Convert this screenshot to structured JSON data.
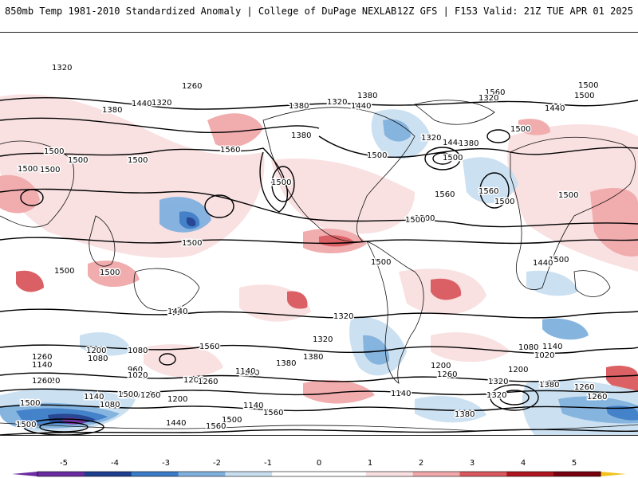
{
  "header": {
    "title": "850mb Temp 1981-2010 Standardized Anomaly | College of DuPage NEXLAB",
    "run_info": "12Z GFS | F153 Valid: 21Z TUE APR 01 2025"
  },
  "map": {
    "contour_labels": [
      "1320",
      "1260",
      "1380",
      "1440",
      "1560",
      "1500",
      "1320",
      "1380",
      "1320",
      "1380",
      "1440",
      "1380",
      "1320",
      "1560",
      "1500",
      "1500",
      "1500",
      "1500",
      "1500",
      "1500",
      "1560",
      "1500",
      "1500",
      "1500",
      "1500",
      "1500",
      "1500",
      "1500",
      "1440",
      "1440",
      "1560",
      "1500",
      "1500",
      "1380",
      "1320",
      "1260",
      "1200",
      "1080",
      "1320",
      "1380",
      "1260",
      "1140",
      "1080",
      "960",
      "1020",
      "1200",
      "1140",
      "1260",
      "1020",
      "1260",
      "1140",
      "1080",
      "1200",
      "1260",
      "1080",
      "1140",
      "1200",
      "1260",
      "1140",
      "1020",
      "1080",
      "1140",
      "1320",
      "1200",
      "1320",
      "1380",
      "1260",
      "1380",
      "1440",
      "1500",
      "1560",
      "1560",
      "1500",
      "1500",
      "1500",
      "1500",
      "1500",
      "1440",
      "1560",
      "1320",
      "1440",
      "1380",
      "1500",
      "1500",
      "1260",
      "1320"
    ],
    "anomaly_colors": {
      "cold5": "#6a2ca0",
      "cold4": "#1e3f8f",
      "cold3": "#3b7cc8",
      "cold2": "#7fb0de",
      "cold1": "#c9dff1",
      "warm1": "#f9dfe0",
      "warm2": "#f1a8aa",
      "warm3": "#d9585d",
      "warm4": "#b0151f",
      "warm5": "#7a0010"
    }
  },
  "colorbar": {
    "ticks": [
      "-5",
      "-4",
      "-3",
      "-2",
      "-1",
      "0",
      "1",
      "2",
      "3",
      "4",
      "5"
    ],
    "colors": [
      "#6a2ca0",
      "#1e3f8f",
      "#3b7cc8",
      "#7fb0de",
      "#c9dff1",
      "#ffffff",
      "#ffffff",
      "#f9dfe0",
      "#f1a8aa",
      "#d9585d",
      "#b0151f",
      "#7a0010"
    ],
    "end_left": "#6a2ca0",
    "end_right": "#f2c21b"
  }
}
